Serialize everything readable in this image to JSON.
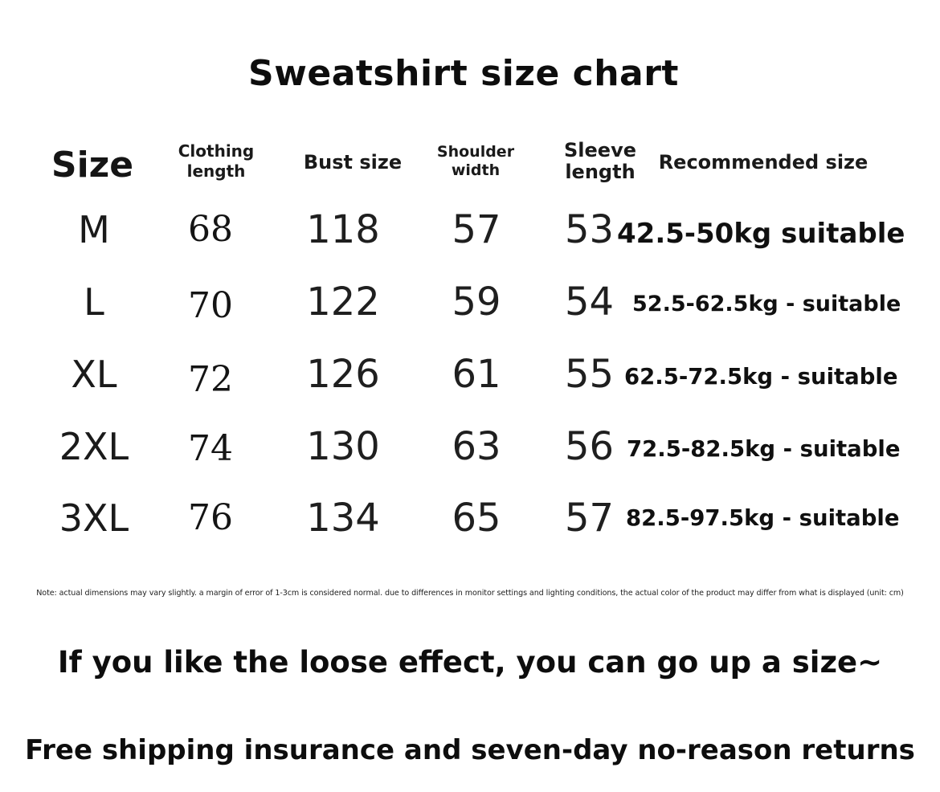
{
  "title": "Sweatshirt size chart",
  "headers": {
    "size": "Size",
    "clothing_length": [
      "Clothing",
      "length"
    ],
    "bust_size": "Bust size",
    "shoulder_width": [
      "Shoulder",
      "width"
    ],
    "sleeve_length": [
      "Sleeve",
      "length"
    ],
    "recommended_size": "Recommended size"
  },
  "rows": [
    {
      "size": "M",
      "clothing_length": "68",
      "bust": "118",
      "shoulder": "57",
      "sleeve": "53",
      "recommended": "42.5-50kg suitable"
    },
    {
      "size": "L",
      "clothing_length": "70",
      "bust": "122",
      "shoulder": "59",
      "sleeve": "54",
      "recommended": "52.5-62.5kg - suitable"
    },
    {
      "size": "XL",
      "clothing_length": "72",
      "bust": "126",
      "shoulder": "61",
      "sleeve": "55",
      "recommended": "62.5-72.5kg - suitable"
    },
    {
      "size": "2XL",
      "clothing_length": "74",
      "bust": "130",
      "shoulder": "63",
      "sleeve": "56",
      "recommended": "72.5-82.5kg - suitable"
    },
    {
      "size": "3XL",
      "clothing_length": "76",
      "bust": "134",
      "shoulder": "65",
      "sleeve": "57",
      "recommended": "82.5-97.5kg - suitable"
    }
  ],
  "note": "Note: actual dimensions may vary slightly. a margin of error of 1-3cm is considered normal. due to differences in monitor settings and lighting conditions, the actual color of the product may differ from what is displayed (unit: cm)",
  "promo_loose": "If you like the loose effect, you can go up a size~",
  "promo_shipping": "Free shipping insurance and seven-day no-reason returns"
}
